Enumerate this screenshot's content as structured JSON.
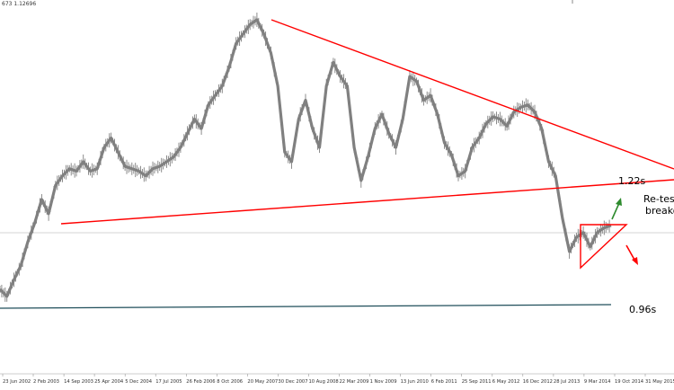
{
  "header_text": "673 1.12696",
  "chart_data": {
    "type": "line",
    "title": "",
    "xlabel": "",
    "ylabel": "",
    "x_tick_labels": [
      "23 Jun 2002",
      "2 Feb 2003",
      "14 Sep 2003",
      "25 Apr 2004",
      "5 Dec 2004",
      "17 Jul 2005",
      "26 Feb 2006",
      "8 Oct 2006",
      "20 May 2007",
      "30 Dec 2007",
      "10 Aug 2008",
      "22 Mar 2009",
      "1 Nov 2009",
      "13 Jun 2010",
      "6 Feb 2011",
      "25 Sep 2011",
      "6 May 2012",
      "16 Dec 2012",
      "28 Jul 2013",
      "9 Mar 2014",
      "19 Oct 2014",
      "31 May 2015"
    ],
    "series": [
      {
        "name": "",
        "color": "#808080",
        "y": [
          1.0,
          0.985,
          1.02,
          1.05,
          1.1,
          1.14,
          1.19,
          1.16,
          1.22,
          1.24,
          1.255,
          1.25,
          1.27,
          1.25,
          1.255,
          1.3,
          1.32,
          1.29,
          1.26,
          1.255,
          1.25,
          1.24,
          1.255,
          1.26,
          1.27,
          1.28,
          1.3,
          1.33,
          1.36,
          1.34,
          1.39,
          1.41,
          1.43,
          1.47,
          1.52,
          1.54,
          1.56,
          1.57,
          1.54,
          1.5,
          1.43,
          1.29,
          1.27,
          1.36,
          1.4,
          1.34,
          1.3,
          1.43,
          1.48,
          1.45,
          1.43,
          1.3,
          1.23,
          1.28,
          1.34,
          1.37,
          1.33,
          1.3,
          1.36,
          1.45,
          1.44,
          1.4,
          1.41,
          1.37,
          1.31,
          1.285,
          1.24,
          1.25,
          1.3,
          1.32,
          1.35,
          1.365,
          1.36,
          1.345,
          1.375,
          1.385,
          1.39,
          1.375,
          1.34,
          1.27,
          1.24,
          1.15,
          1.08,
          1.11,
          1.12,
          1.09,
          1.12,
          1.13,
          1.135
        ]
      }
    ],
    "levels": [
      {
        "label": "1.22s",
        "color": "#ff0000"
      },
      {
        "label": "0.96s",
        "color": "#1f4e5a"
      }
    ],
    "trendline_color": "#ff0000",
    "annotations": [
      "Re-test",
      "breako"
    ],
    "arrow_colors": {
      "up": "#2e8b2e",
      "down": "#ff0000"
    },
    "current_price_line_color": "#c8c8c8",
    "grid": false
  }
}
